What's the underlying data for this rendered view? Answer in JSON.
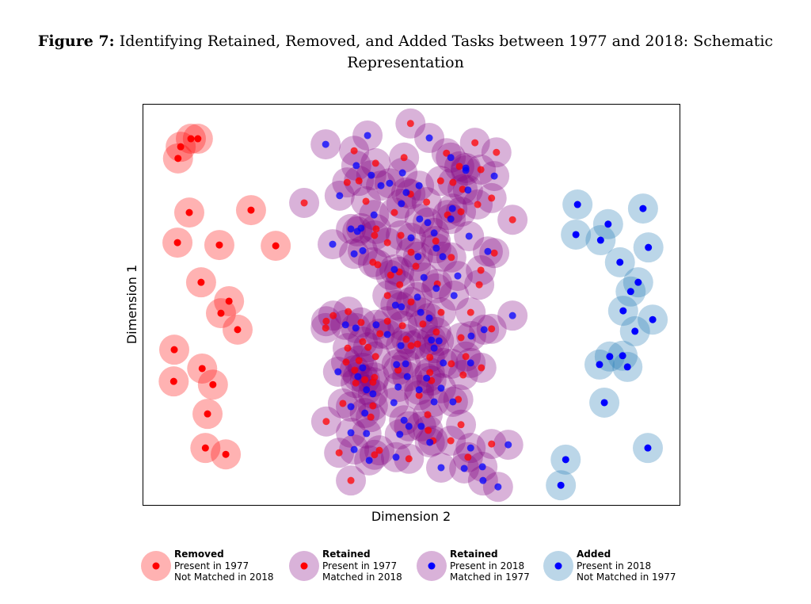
{
  "title": {
    "prefix": "Figure 7:",
    "line1": "Identifying Retained, Removed, and Added Tasks between 1977 and 2018: Schematic",
    "line2": "Representation"
  },
  "chart_data": {
    "type": "scatter",
    "xlabel": "Dimension 2",
    "ylabel": "Dimension 1",
    "xlim": [
      0,
      100
    ],
    "ylim": [
      0,
      100
    ],
    "grid": false,
    "ticks": "none",
    "legend_placement": "bottom",
    "colors": {
      "removed_halo": "#ff0000",
      "removed_dot": "#ff0000",
      "retained_halo": "#800080",
      "retained_dot_1977": "#ff0000",
      "retained_dot_2018": "#0000ff",
      "added_halo": "#1f77b4",
      "added_dot": "#0000ff"
    },
    "legend": [
      {
        "title": "Removed",
        "line1": "Present in 1977",
        "line2": "Not Matched in 2018",
        "series": "removed"
      },
      {
        "title": "Retained",
        "line1": "Present in 1977",
        "line2": "Matched in 2018",
        "series": "retained_1977"
      },
      {
        "title": "Retained",
        "line1": "Present in 2018",
        "line2": "Matched in 1977",
        "series": "retained_2018"
      },
      {
        "title": "Added",
        "line1": "Present in 2018",
        "line2": "Not Matched in 1977",
        "series": "added"
      }
    ],
    "series": [
      {
        "name": "removed",
        "halo": "#ff0000",
        "dot": "#ff0000",
        "points": [
          [
            7.1,
            89.3
          ],
          [
            9.0,
            91.3
          ],
          [
            10.3,
            91.3
          ],
          [
            6.6,
            86.4
          ],
          [
            8.7,
            72.9
          ],
          [
            20.2,
            73.5
          ],
          [
            6.5,
            65.4
          ],
          [
            14.3,
            64.8
          ],
          [
            24.8,
            64.6
          ],
          [
            10.9,
            55.5
          ],
          [
            16.1,
            50.8
          ],
          [
            14.6,
            47.8
          ],
          [
            17.7,
            43.7
          ],
          [
            5.9,
            38.7
          ],
          [
            11.1,
            34.0
          ],
          [
            5.8,
            30.8
          ],
          [
            13.1,
            30.0
          ],
          [
            12.1,
            22.7
          ],
          [
            11.7,
            14.2
          ],
          [
            15.5,
            12.6
          ]
        ]
      },
      {
        "name": "retained_1977",
        "halo": "#800080",
        "dot": "#ff0000",
        "points": [
          [
            49.9,
            95.1
          ],
          [
            39.4,
            88.3
          ],
          [
            43.4,
            85.2
          ],
          [
            48.7,
            86.6
          ],
          [
            38.1,
            80.4
          ],
          [
            40.3,
            80.8
          ],
          [
            41.6,
            75.7
          ],
          [
            49.9,
            77.5
          ],
          [
            46.9,
            72.9
          ],
          [
            52.9,
            75.5
          ],
          [
            56.6,
            87.7
          ],
          [
            59.0,
            84.4
          ],
          [
            63.0,
            83.6
          ],
          [
            61.9,
            90.3
          ],
          [
            65.9,
            87.9
          ],
          [
            55.5,
            80.8
          ],
          [
            57.8,
            80.4
          ],
          [
            59.6,
            78.7
          ],
          [
            65.0,
            76.5
          ],
          [
            62.4,
            74.9
          ],
          [
            56.8,
            72.3
          ],
          [
            59.3,
            73.1
          ],
          [
            68.9,
            71.1
          ],
          [
            30.1,
            75.3
          ],
          [
            43.5,
            68.8
          ],
          [
            43.2,
            67.2
          ],
          [
            45.6,
            65.4
          ],
          [
            48.1,
            67.2
          ],
          [
            54.6,
            65.8
          ],
          [
            50.0,
            63.0
          ],
          [
            50.9,
            59.5
          ],
          [
            57.5,
            61.7
          ],
          [
            65.5,
            62.8
          ],
          [
            42.9,
            60.5
          ],
          [
            43.8,
            59.9
          ],
          [
            46.2,
            57.3
          ],
          [
            47.8,
            58.1
          ],
          [
            47.9,
            54.9
          ],
          [
            54.9,
            55.1
          ],
          [
            63.0,
            58.5
          ],
          [
            62.7,
            54.9
          ],
          [
            45.6,
            52.2
          ],
          [
            50.0,
            50.6
          ],
          [
            55.6,
            48.0
          ],
          [
            61.1,
            48.0
          ],
          [
            35.5,
            47.2
          ],
          [
            38.3,
            48.2
          ],
          [
            34.2,
            45.8
          ],
          [
            34.1,
            44.1
          ],
          [
            40.7,
            45.5
          ],
          [
            45.6,
            45.8
          ],
          [
            52.2,
            45.1
          ],
          [
            48.4,
            44.7
          ],
          [
            44.2,
            42.7
          ],
          [
            54.7,
            43.1
          ],
          [
            59.3,
            41.7
          ],
          [
            65.0,
            43.9
          ],
          [
            41.0,
            40.7
          ],
          [
            38.2,
            39.1
          ],
          [
            42.0,
            39.3
          ],
          [
            50.0,
            39.7
          ],
          [
            51.2,
            40.1
          ],
          [
            49.1,
            41.3
          ],
          [
            43.4,
            37.0
          ],
          [
            40.3,
            36.0
          ],
          [
            37.9,
            35.6
          ],
          [
            53.5,
            36.8
          ],
          [
            57.5,
            35.2
          ],
          [
            60.2,
            37.0
          ],
          [
            63.1,
            34.2
          ],
          [
            47.6,
            33.6
          ],
          [
            53.5,
            33.0
          ],
          [
            53.8,
            31.0
          ],
          [
            59.7,
            32.4
          ],
          [
            39.5,
            33.6
          ],
          [
            41.4,
            31.2
          ],
          [
            43.2,
            31.8
          ],
          [
            42.9,
            30.6
          ],
          [
            39.7,
            30.4
          ],
          [
            51.5,
            27.3
          ],
          [
            58.8,
            26.3
          ],
          [
            37.3,
            25.3
          ],
          [
            42.9,
            24.7
          ],
          [
            42.5,
            21.9
          ],
          [
            53.1,
            22.5
          ],
          [
            59.3,
            20.0
          ],
          [
            34.2,
            20.8
          ],
          [
            53.2,
            18.6
          ],
          [
            54.1,
            16.0
          ],
          [
            57.4,
            16.0
          ],
          [
            65.0,
            15.2
          ],
          [
            36.6,
            13.0
          ],
          [
            44.1,
            13.6
          ],
          [
            43.2,
            12.5
          ],
          [
            49.6,
            11.5
          ],
          [
            60.6,
            11.9
          ],
          [
            38.8,
            6.1
          ]
        ]
      },
      {
        "name": "retained_2018",
        "halo": "#800080",
        "dot": "#0000ff",
        "points": [
          [
            34.1,
            89.9
          ],
          [
            41.9,
            92.1
          ],
          [
            53.4,
            91.5
          ],
          [
            39.8,
            84.6
          ],
          [
            42.6,
            82.2
          ],
          [
            44.4,
            79.6
          ],
          [
            46.0,
            80.2
          ],
          [
            48.4,
            82.8
          ],
          [
            51.5,
            79.6
          ],
          [
            57.4,
            86.6
          ],
          [
            60.2,
            84.0
          ],
          [
            60.2,
            83.4
          ],
          [
            65.5,
            82.0
          ],
          [
            60.6,
            78.5
          ],
          [
            36.7,
            77.1
          ],
          [
            48.2,
            75.1
          ],
          [
            49.1,
            77.9
          ],
          [
            43.1,
            72.3
          ],
          [
            51.6,
            71.3
          ],
          [
            53.1,
            70.4
          ],
          [
            57.7,
            73.9
          ],
          [
            57.4,
            71.3
          ],
          [
            38.8,
            68.8
          ],
          [
            40.0,
            68.2
          ],
          [
            40.7,
            69.0
          ],
          [
            35.4,
            65.0
          ],
          [
            39.4,
            62.6
          ],
          [
            41.0,
            63.4
          ],
          [
            50.0,
            66.6
          ],
          [
            54.3,
            67.8
          ],
          [
            54.7,
            64.0
          ],
          [
            51.3,
            61.9
          ],
          [
            55.9,
            61.9
          ],
          [
            60.8,
            67.0
          ],
          [
            64.3,
            63.2
          ],
          [
            46.9,
            58.7
          ],
          [
            52.4,
            56.7
          ],
          [
            58.7,
            57.1
          ],
          [
            54.7,
            54.0
          ],
          [
            58.0,
            52.2
          ],
          [
            51.2,
            51.8
          ],
          [
            68.9,
            47.2
          ],
          [
            47.1,
            49.8
          ],
          [
            48.2,
            49.4
          ],
          [
            51.8,
            48.0
          ],
          [
            53.4,
            46.6
          ],
          [
            37.8,
            44.9
          ],
          [
            39.7,
            44.1
          ],
          [
            43.5,
            44.9
          ],
          [
            45.6,
            42.5
          ],
          [
            48.1,
            39.7
          ],
          [
            53.8,
            41.1
          ],
          [
            55.2,
            40.9
          ],
          [
            54.3,
            39.1
          ],
          [
            61.2,
            42.1
          ],
          [
            63.6,
            43.7
          ],
          [
            56.0,
            35.4
          ],
          [
            61.1,
            35.4
          ],
          [
            47.3,
            35.0
          ],
          [
            49.0,
            35.2
          ],
          [
            36.4,
            33.2
          ],
          [
            41.0,
            34.2
          ],
          [
            40.1,
            32.0
          ],
          [
            49.3,
            32.0
          ],
          [
            52.9,
            31.6
          ],
          [
            47.6,
            29.4
          ],
          [
            51.5,
            28.7
          ],
          [
            55.6,
            29.1
          ],
          [
            41.7,
            28.7
          ],
          [
            42.9,
            27.7
          ],
          [
            46.8,
            25.5
          ],
          [
            54.3,
            25.7
          ],
          [
            57.8,
            25.7
          ],
          [
            38.8,
            24.5
          ],
          [
            41.4,
            22.9
          ],
          [
            48.7,
            21.1
          ],
          [
            49.6,
            19.6
          ],
          [
            51.9,
            19.6
          ],
          [
            47.9,
            17.6
          ],
          [
            38.8,
            18.0
          ],
          [
            41.7,
            17.8
          ],
          [
            53.5,
            15.6
          ],
          [
            39.4,
            13.8
          ],
          [
            42.2,
            11.1
          ],
          [
            47.2,
            11.9
          ],
          [
            61.1,
            14.2
          ],
          [
            68.1,
            15.0
          ],
          [
            55.6,
            9.3
          ],
          [
            59.9,
            9.1
          ],
          [
            63.3,
            9.5
          ],
          [
            63.4,
            6.1
          ],
          [
            66.2,
            4.5
          ]
        ]
      },
      {
        "name": "added",
        "halo": "#1f77b4",
        "dot": "#0000ff",
        "points": [
          [
            81.0,
            74.9
          ],
          [
            93.2,
            73.9
          ],
          [
            80.7,
            67.4
          ],
          [
            86.7,
            70.0
          ],
          [
            85.3,
            66.0
          ],
          [
            94.2,
            64.2
          ],
          [
            88.9,
            60.5
          ],
          [
            92.3,
            55.5
          ],
          [
            90.9,
            53.2
          ],
          [
            89.5,
            48.4
          ],
          [
            95.0,
            46.2
          ],
          [
            91.7,
            43.3
          ],
          [
            87.0,
            37.0
          ],
          [
            89.4,
            37.2
          ],
          [
            85.1,
            35.0
          ],
          [
            90.3,
            34.4
          ],
          [
            86.0,
            25.5
          ],
          [
            94.1,
            14.2
          ],
          [
            78.8,
            11.3
          ],
          [
            77.9,
            4.9
          ]
        ]
      }
    ]
  }
}
